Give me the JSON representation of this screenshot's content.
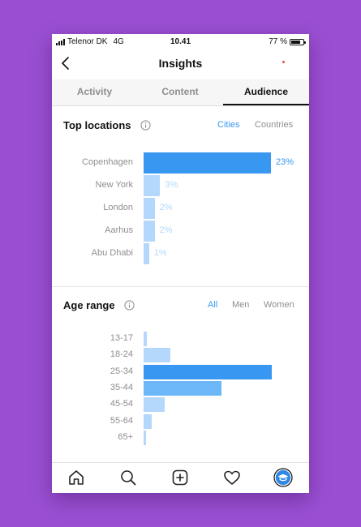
{
  "status": {
    "carrier": "Telenor DK",
    "network": "4G",
    "time": "10.41",
    "battery": "77 %",
    "battery_level": 0.77
  },
  "header": {
    "title": "Insights"
  },
  "tabs": [
    {
      "label": "Activity"
    },
    {
      "label": "Content"
    },
    {
      "label": "Audience"
    }
  ],
  "active_tab": "Audience",
  "top_locations": {
    "title": "Top locations",
    "filters": [
      "Cities",
      "Countries"
    ],
    "active_filter": "Cities",
    "rows": [
      {
        "label": "Copenhagen",
        "value": 23,
        "text": "23%"
      },
      {
        "label": "New York",
        "value": 3,
        "text": "3%"
      },
      {
        "label": "London",
        "value": 2,
        "text": "2%"
      },
      {
        "label": "Aarhus",
        "value": 2,
        "text": "2%"
      },
      {
        "label": "Abu Dhabi",
        "value": 1,
        "text": "1%"
      }
    ]
  },
  "age_range": {
    "title": "Age range",
    "filters": [
      "All",
      "Men",
      "Women"
    ],
    "active_filter": "All",
    "rows": [
      {
        "label": "13-17",
        "value": 0.6
      },
      {
        "label": "18-24",
        "value": 4.8
      },
      {
        "label": "25-34",
        "value": 23
      },
      {
        "label": "35-44",
        "value": 14
      },
      {
        "label": "45-54",
        "value": 3.8
      },
      {
        "label": "55-64",
        "value": 1.4
      },
      {
        "label": "65+",
        "value": 0.4
      }
    ]
  },
  "colors": {
    "accent": "#3897f0",
    "bar_light": "#b3d8fc",
    "bar_medium": "#6cb7f7",
    "background": "#9a4fd2"
  },
  "bottom_nav": [
    "home-icon",
    "search-icon",
    "add-post-icon",
    "heart-icon",
    "profile-avatar-icon"
  ]
}
